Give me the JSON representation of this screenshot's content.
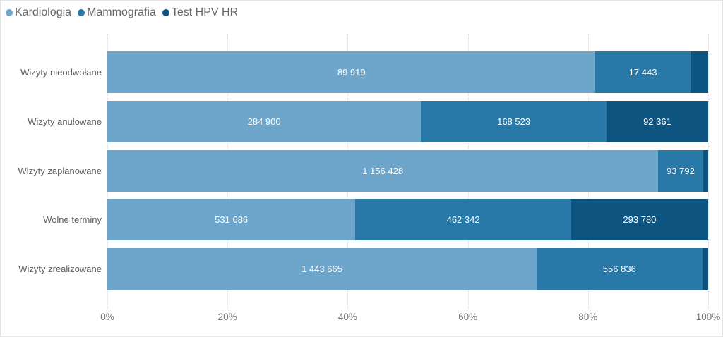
{
  "chart_data": {
    "type": "bar",
    "variant": "100-percent-stacked-horizontal",
    "title": "",
    "xlabel": "",
    "ylabel": "",
    "xlim": [
      0,
      100
    ],
    "x_ticks": [
      "0%",
      "20%",
      "40%",
      "60%",
      "80%",
      "100%"
    ],
    "grid": "vertical-dotted",
    "legend_position": "top-left",
    "label_color": "#ffffff",
    "axis_text_color": "#757575",
    "category_text_color": "#605e5c",
    "categories": [
      "Wizyty nieodwołane",
      "Wizyty anulowane",
      "Wizyty zaplanowane",
      "Wolne terminy",
      "Wizyty zrealizowane"
    ],
    "series": [
      {
        "name": "Kardiologia",
        "color": "#6ea6cb",
        "values": [
          89919,
          284900,
          1156428,
          531686,
          1443665
        ],
        "labels": [
          "89 919",
          "284 900",
          "1 156 428",
          "531 686",
          "1 443 665"
        ]
      },
      {
        "name": "Mammografia",
        "color": "#2878a8",
        "values": [
          17443,
          168523,
          93792,
          462342,
          556836
        ],
        "labels": [
          "17 443",
          "168 523",
          "93 792",
          "462 342",
          "556 836"
        ]
      },
      {
        "name": "Test HPV HR",
        "color": "#0e5480",
        "values": [
          3300,
          92361,
          11000,
          293780,
          20000
        ],
        "labels": [
          "",
          "92 361",
          "",
          "293 780",
          ""
        ],
        "note": "values at indices 0, 2 and 4 are estimated from segment widths; their labels are hidden in the chart"
      }
    ]
  }
}
